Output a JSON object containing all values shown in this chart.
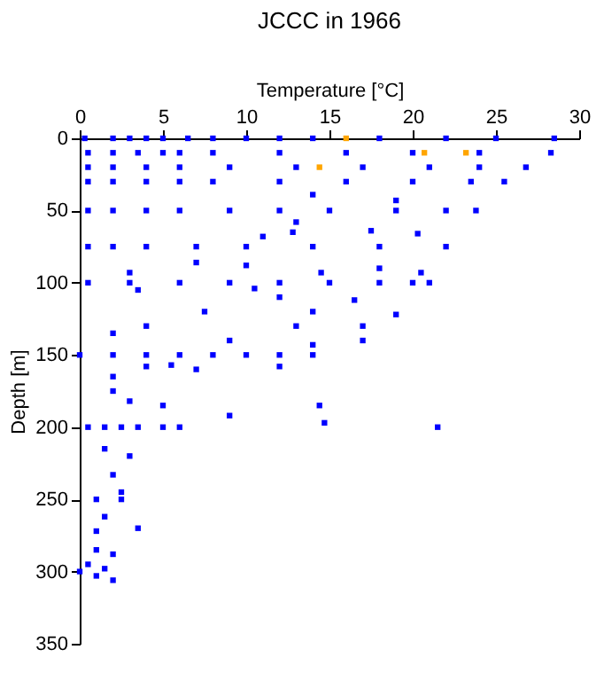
{
  "chart_data": {
    "type": "scatter",
    "title": "JCCC in 1966",
    "xlabel": "Temperature [°C]",
    "ylabel": "Depth [m]",
    "xlim": [
      0,
      30
    ],
    "xticks": [
      0,
      5,
      10,
      15,
      20,
      25,
      30
    ],
    "ylim": [
      350,
      0
    ],
    "yticks": [
      0,
      50,
      100,
      150,
      200,
      250,
      300,
      350
    ],
    "grid": false,
    "marker": "square",
    "series": [
      {
        "color": "#0000ff",
        "x": [
          0.3,
          2,
          3,
          4,
          5,
          6.5,
          8,
          10,
          12,
          14,
          18,
          22,
          25,
          28.5,
          0.5,
          2,
          3.5,
          5,
          6,
          8,
          12,
          16,
          20,
          24,
          28.3,
          0.5,
          2,
          4,
          6,
          9,
          13,
          17,
          21,
          24,
          26.8,
          0.5,
          2,
          4,
          6,
          8,
          12,
          16,
          20,
          23.5,
          25.5,
          0.5,
          2,
          4,
          6,
          9,
          12,
          15,
          19,
          22,
          23.8,
          0.5,
          2,
          4,
          7,
          10,
          14,
          18,
          22,
          0.5,
          3,
          6,
          9,
          12,
          15,
          18,
          20,
          0,
          2,
          4,
          6,
          8,
          10,
          12,
          14,
          0.5,
          1.5,
          2.5,
          3.5,
          5,
          6,
          14,
          19,
          13,
          12.8,
          17.5,
          20.3,
          11,
          7,
          10,
          14.5,
          18,
          3,
          20.5,
          21,
          3.5,
          10.5,
          12,
          16.5,
          7.5,
          14,
          13,
          17,
          19,
          4,
          2,
          9,
          14,
          17,
          12,
          7,
          4,
          5.5,
          2,
          2,
          3,
          5,
          9,
          14.4,
          14.7,
          21.5,
          1.5,
          3,
          2,
          1,
          2.5,
          1.5,
          1,
          3.5,
          1,
          2,
          0.5,
          1.5,
          0,
          1,
          2,
          2.5
        ],
        "values": [
          0,
          0,
          0,
          0,
          0,
          0,
          0,
          0,
          0,
          0,
          0,
          0,
          0,
          0,
          10,
          10,
          10,
          10,
          10,
          10,
          10,
          10,
          10,
          10,
          10,
          20,
          20,
          20,
          20,
          20,
          20,
          20,
          20,
          20,
          20,
          30,
          30,
          30,
          30,
          30,
          30,
          30,
          30,
          30,
          30,
          50,
          50,
          50,
          50,
          50,
          50,
          50,
          50,
          50,
          50,
          75,
          75,
          75,
          75,
          75,
          75,
          75,
          75,
          100,
          100,
          100,
          100,
          100,
          100,
          100,
          100,
          150,
          150,
          150,
          150,
          150,
          150,
          150,
          150,
          200,
          200,
          200,
          200,
          200,
          200,
          39,
          43,
          58,
          65,
          64,
          66,
          68,
          86,
          88,
          93,
          90,
          93,
          93,
          100,
          105,
          104,
          110,
          112,
          120,
          120,
          130,
          130,
          122,
          130,
          135,
          140,
          143,
          140,
          158,
          160,
          158,
          157,
          165,
          175,
          182,
          185,
          192,
          185,
          197,
          200,
          215,
          220,
          233,
          250,
          250,
          262,
          272,
          270,
          285,
          288,
          295,
          298,
          300,
          303,
          306,
          245
        ]
      },
      {
        "color": "#ffa500",
        "x": [
          16,
          20.7,
          23.2,
          14.4
        ],
        "values": [
          0,
          10,
          10,
          20
        ]
      }
    ]
  }
}
